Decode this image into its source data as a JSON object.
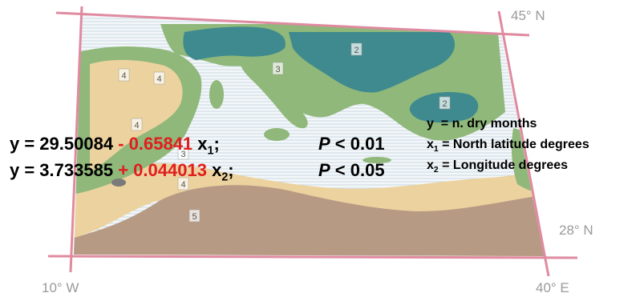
{
  "map": {
    "coordinates": {
      "north_top": "45° N",
      "north_bottom": "28° N",
      "west": "10° W",
      "east": "40° E"
    },
    "zone_labels": [
      "2",
      "2",
      "3",
      "3",
      "4",
      "4",
      "4",
      "4",
      "5"
    ],
    "colors": {
      "zone_2": "#3f8a8e",
      "zone_3": "#8fb87a",
      "zone_4": "#ecd29e",
      "zone_5": "#b79a84",
      "sea": "#eef3f6",
      "frame": "#e08aa0",
      "highlight": "#e01e1e"
    }
  },
  "equations": [
    {
      "lhs": "y = 29.50084",
      "coef": "- 0.65841",
      "var": "x",
      "sub": "1",
      "tail": ";",
      "p_label": "P",
      "p_rel": " < 0.01"
    },
    {
      "lhs": "y = 3.733585",
      "coef": "+ 0.044013",
      "var": "x",
      "sub": "2",
      "tail": ";",
      "p_label": "P",
      "p_rel": " < 0.05"
    }
  ],
  "legend": [
    {
      "var": "y",
      "sub": "",
      "text": "  = n. dry months"
    },
    {
      "var": "x",
      "sub": "1",
      "text": " = North latitude degrees"
    },
    {
      "var": "x",
      "sub": "2",
      "text": " = Longitude degrees"
    }
  ]
}
